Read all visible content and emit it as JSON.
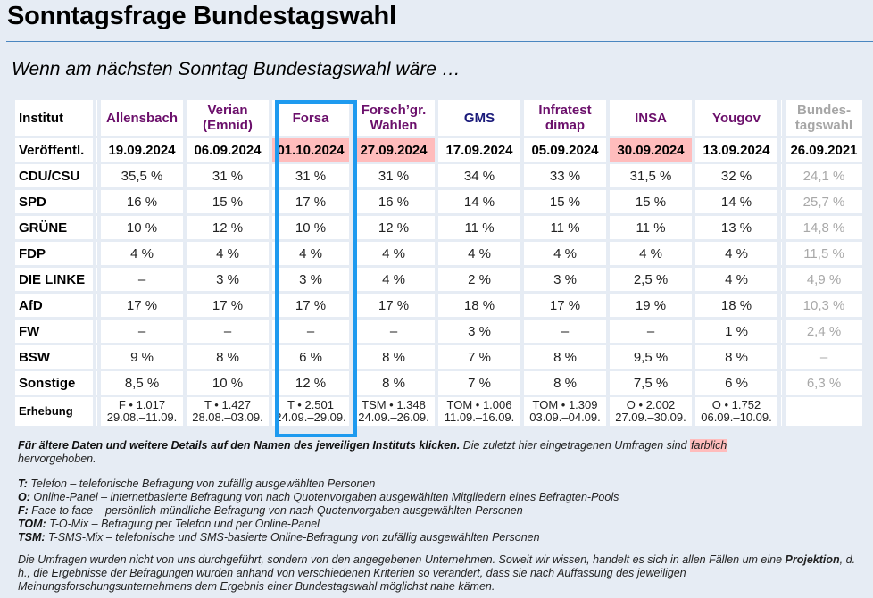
{
  "page": {
    "title": "Sonntagsfrage Bundestagswahl",
    "subtitle": "Wenn am nächsten Sonntag Bundestagswahl wäre …"
  },
  "table": {
    "row_label_header": "Institut",
    "published_label": "Veröffentl.",
    "survey_label": "Erhebung",
    "highlight_color": "#ffbcbc",
    "focus_border_color": "#1e9aef",
    "institutes": [
      {
        "name_line1": "Allensbach",
        "name_line2": "",
        "date": "19.09.2024",
        "highlighted": false,
        "method": "F • 1.017",
        "period": "29.08.–11.09."
      },
      {
        "name_line1": "Verian",
        "name_line2": "(Emnid)",
        "date": "06.09.2024",
        "highlighted": false,
        "method": "T • 1.427",
        "period": "28.08.–03.09."
      },
      {
        "name_line1": "Forsa",
        "name_line2": "",
        "date": "01.10.2024",
        "highlighted": true,
        "method": "T • 2.501",
        "period": "24.09.–29.09."
      },
      {
        "name_line1": "Forsch’gr.",
        "name_line2": "Wahlen",
        "date": "27.09.2024",
        "highlighted": true,
        "method": "TSM • 1.348",
        "period": "24.09.–26.09."
      },
      {
        "name_line1": "GMS",
        "name_line2": "",
        "date": "17.09.2024",
        "highlighted": false,
        "method": "TOM • 1.006",
        "period": "11.09.–16.09."
      },
      {
        "name_line1": "Infratest",
        "name_line2": "dimap",
        "date": "05.09.2024",
        "highlighted": false,
        "method": "TOM • 1.309",
        "period": "03.09.–04.09."
      },
      {
        "name_line1": "INSA",
        "name_line2": "",
        "date": "30.09.2024",
        "highlighted": true,
        "method": "O • 2.002",
        "period": "27.09.–30.09."
      },
      {
        "name_line1": "Yougov",
        "name_line2": "",
        "date": "13.09.2024",
        "highlighted": false,
        "method": "O • 1.752",
        "period": "06.09.–10.09."
      }
    ],
    "election": {
      "name_line1": "Bundes-",
      "name_line2": "tagswahl",
      "date": "26.09.2021"
    },
    "parties": [
      {
        "name": "CDU/CSU",
        "values": [
          "35,5 %",
          "31 %",
          "31 %",
          "31 %",
          "34 %",
          "33 %",
          "31,5 %",
          "32 %"
        ],
        "election": "24,1 %"
      },
      {
        "name": "SPD",
        "values": [
          "16 %",
          "15 %",
          "17 %",
          "16 %",
          "14 %",
          "15 %",
          "15 %",
          "14 %"
        ],
        "election": "25,7 %"
      },
      {
        "name": "GRÜNE",
        "values": [
          "10 %",
          "12 %",
          "10 %",
          "12 %",
          "11 %",
          "11 %",
          "11 %",
          "13 %"
        ],
        "election": "14,8 %"
      },
      {
        "name": "FDP",
        "values": [
          "4 %",
          "4 %",
          "4 %",
          "4 %",
          "4 %",
          "4 %",
          "4 %",
          "4 %"
        ],
        "election": "11,5 %"
      },
      {
        "name": "DIE LINKE",
        "values": [
          "–",
          "3 %",
          "3 %",
          "4 %",
          "2 %",
          "3 %",
          "2,5 %",
          "4 %"
        ],
        "election": "4,9 %"
      },
      {
        "name": "AfD",
        "values": [
          "17 %",
          "17 %",
          "17 %",
          "17 %",
          "18 %",
          "17 %",
          "19 %",
          "18 %"
        ],
        "election": "10,3 %"
      },
      {
        "name": "FW",
        "values": [
          "–",
          "–",
          "–",
          "–",
          "3 %",
          "–",
          "–",
          "1 %"
        ],
        "election": "2,4 %"
      },
      {
        "name": "BSW",
        "values": [
          "9 %",
          "8 %",
          "6 %",
          "8 %",
          "7 %",
          "8 %",
          "9,5 %",
          "8 %"
        ],
        "election": "–"
      },
      {
        "name": "Sonstige",
        "values": [
          "8,5 %",
          "10 %",
          "12 %",
          "8 %",
          "7 %",
          "8 %",
          "7,5 %",
          "6 %"
        ],
        "election": "6,3 %"
      }
    ]
  },
  "notes": {
    "bold_part": "Für ältere Daten und weitere Details auf den Namen des jeweiligen Instituts klicken.",
    "normal_part": " Die zuletzt hier eingetragenen Umfragen sind ",
    "highlight_word": "farblich",
    "end_part": " hervorgehoben."
  },
  "legend": [
    {
      "code": "T:",
      "text": "Telefon – telefonische Befragung von zufällig ausgewählten Personen"
    },
    {
      "code": "O:",
      "text": "Online-Panel – internetbasierte Befragung von nach Quotenvorgaben ausgewählten Mitgliedern eines Befragten-Pools"
    },
    {
      "code": "F:",
      "text": "Face to face – persönlich-mündliche Befragung von nach Quotenvorgaben ausgewählten Personen"
    },
    {
      "code": "TOM:",
      "text": "T-O-Mix – Befragung per Telefon und per Online-Panel"
    },
    {
      "code": "TSM:",
      "text": "T-SMS-Mix – telefonische und SMS-basierte Online-Befragung von zufällig ausgewählten Personen"
    }
  ],
  "disclaimer": {
    "part1": "Die Umfragen wurden nicht von uns durchgeführt, sondern von den angegebenen Unternehmen. Soweit wir wissen, handelt es sich in allen Fällen um eine ",
    "bold": "Projektion",
    "part2": ", d. h., die Ergebnisse der Befragungen wurden anhand von verschiedenen Kriterien so verändert, dass sie nach Auffassung des jeweiligen Meinungsforschungsunternehmens dem Ergebnis einer Bundestagswahl möglichst nahe kämen."
  }
}
